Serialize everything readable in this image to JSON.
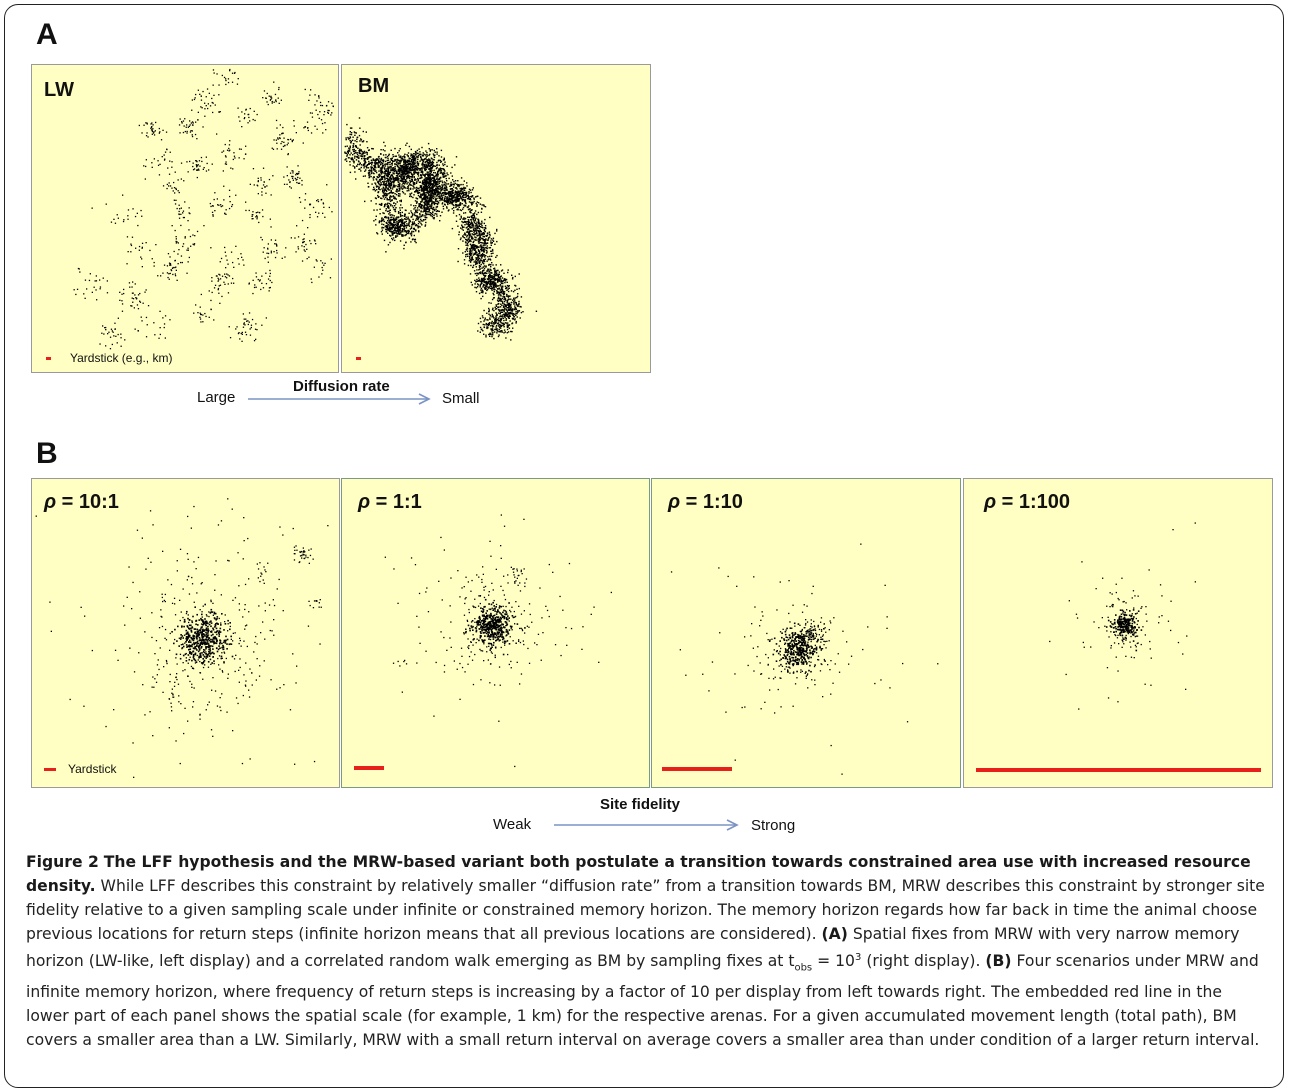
{
  "figure": {
    "section_a_label": "A",
    "section_b_label": "B",
    "panels_a": [
      {
        "label": "LW",
        "yardstick_text": "Yardstick (e.g., km)"
      },
      {
        "label": "BM",
        "yardstick_text": ""
      }
    ],
    "scale_a": {
      "title": "Diffusion rate",
      "left": "Large",
      "right": "Small"
    },
    "panels_b": [
      {
        "label_prefix": "ρ",
        "label_value": " = 10:1",
        "yardstick_text": "Yardstick"
      },
      {
        "label_prefix": "ρ",
        "label_value": " = 1:1",
        "yardstick_text": ""
      },
      {
        "label_prefix": "ρ",
        "label_value": " = 1:10",
        "yardstick_text": ""
      },
      {
        "label_prefix": "ρ",
        "label_value": " = 1:100",
        "yardstick_text": ""
      }
    ],
    "scale_b": {
      "title": "Site fidelity",
      "left": "Weak",
      "right": "Strong"
    },
    "colors": {
      "panel_bg": "#ffffc4",
      "yardstick": "#e8201c",
      "arrow": "#7b93c4",
      "dots": "#000000"
    }
  },
  "caption": {
    "figure_number": "Figure 2",
    "title": "The LFF hypothesis and the MRW-based variant both postulate a transition towards constrained area use with increased resource density.",
    "part1": "While LFF describes this constraint by relatively smaller “diffusion rate” from a transition towards BM, MRW describes this constraint by stronger site fidelity relative to a given sampling scale under infinite or constrained memory horizon. The memory horizon regards how far back in time the animal choose previous locations for return steps (infinite horizon means that all previous locations are considered).",
    "tag_a": "(A)",
    "part2a": "Spatial fixes from MRW with very narrow memory horizon (LW-like, left display) and a correlated random walk emerging as BM by sampling fixes at t",
    "sub_obs": "obs",
    "eq": " = 10",
    "sup_3": "3",
    "part2b": " (right display).",
    "tag_b": "(B)",
    "part3": "Four scenarios under MRW and infinite memory horizon, where frequency of return steps is increasing by a factor of 10 per display from left towards right. The embedded red line in the lower part of each panel shows the spatial scale (for example, 1 km) for the respective arenas. For a given accumulated movement length (total path), BM covers a smaller area than a LW. Similarly, MRW with a small return interval on average covers a smaller area than under condition of a larger return interval."
  }
}
